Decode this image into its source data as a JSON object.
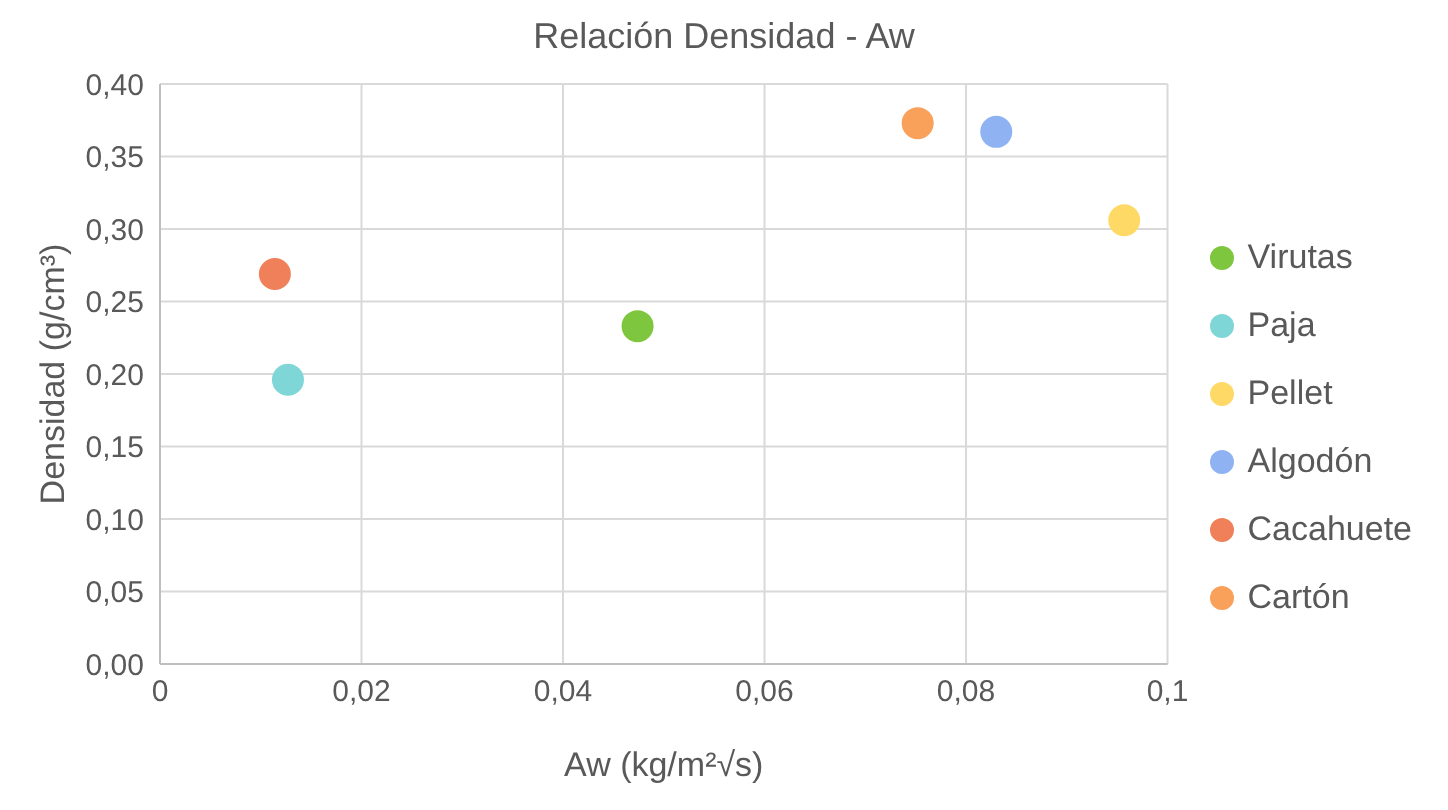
{
  "chart_data": {
    "type": "scatter",
    "title": "Relación Densidad - Aw",
    "xlabel": "Aw (kg/m²√s)",
    "ylabel": "Densidad (g/cm³)",
    "series": [
      {
        "name": "Virutas",
        "color": "#7dc63e",
        "x": [
          0.0474
        ],
        "values": [
          0.233
        ]
      },
      {
        "name": "Paja",
        "color": "#7fd6d6",
        "x": [
          0.0127
        ],
        "values": [
          0.196
        ]
      },
      {
        "name": "Pellet",
        "color": "#ffd966",
        "x": [
          0.0957
        ],
        "values": [
          0.306
        ]
      },
      {
        "name": "Algodón",
        "color": "#8fb3f2",
        "x": [
          0.083
        ],
        "values": [
          0.367
        ]
      },
      {
        "name": "Cacahuete",
        "color": "#f0805a",
        "x": [
          0.0114
        ],
        "values": [
          0.269
        ]
      },
      {
        "name": "Cartón",
        "color": "#f9a05a",
        "x": [
          0.0752
        ],
        "values": [
          0.373
        ]
      }
    ],
    "xlim": [
      0,
      0.1
    ],
    "xticks": [
      {
        "value": 0,
        "label": "0"
      },
      {
        "value": 0.02,
        "label": "0,02"
      },
      {
        "value": 0.04,
        "label": "0,04"
      },
      {
        "value": 0.06,
        "label": "0,06"
      },
      {
        "value": 0.08,
        "label": "0,08"
      },
      {
        "value": 0.1,
        "label": "0,1"
      }
    ],
    "ylim": [
      0,
      0.4
    ],
    "yticks": [
      {
        "value": 0,
        "label": "0,00"
      },
      {
        "value": 0.05,
        "label": "0,05"
      },
      {
        "value": 0.1,
        "label": "0,10"
      },
      {
        "value": 0.15,
        "label": "0,15"
      },
      {
        "value": 0.2,
        "label": "0,20"
      },
      {
        "value": 0.25,
        "label": "0,25"
      },
      {
        "value": 0.3,
        "label": "0,30"
      },
      {
        "value": 0.35,
        "label": "0,35"
      },
      {
        "value": 0.4,
        "label": "0,40"
      }
    ],
    "grid": true,
    "legend": "right",
    "marker": "circle"
  }
}
